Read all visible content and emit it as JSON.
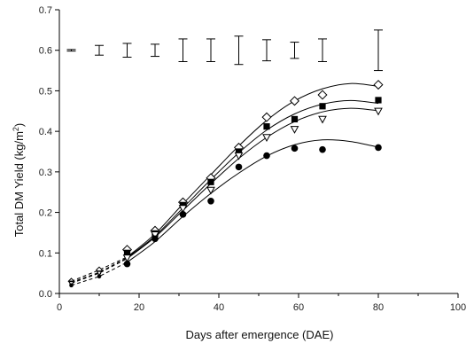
{
  "chart_data": {
    "type": "scatter",
    "title": "",
    "xlabel": "Days after emergence (DAE)",
    "ylabel_main": "Total DM Yield (kg/m",
    "ylabel_sup": "2",
    "ylabel_tail": ")",
    "xlim": [
      0,
      100
    ],
    "ylim": [
      0,
      0.7
    ],
    "xticks": [
      0,
      20,
      40,
      60,
      80,
      100
    ],
    "yticks": [
      0.0,
      0.1,
      0.2,
      0.3,
      0.4,
      0.5,
      0.6,
      0.7
    ],
    "grid": false,
    "legend": "none",
    "series": [
      {
        "marker": "open-diamond",
        "x": [
          3,
          10,
          17,
          24,
          31,
          38,
          45,
          52,
          59,
          66,
          80
        ],
        "y": [
          0.03,
          0.058,
          0.108,
          0.155,
          0.225,
          0.285,
          0.36,
          0.435,
          0.475,
          0.49,
          0.515
        ],
        "fit": {
          "x": [
            17,
            24,
            31,
            38,
            45,
            52,
            59,
            66,
            73,
            80
          ],
          "y": [
            0.09,
            0.147,
            0.221,
            0.293,
            0.364,
            0.427,
            0.475,
            0.505,
            0.518,
            0.511
          ]
        }
      },
      {
        "marker": "filled-square",
        "x": [
          3,
          10,
          17,
          24,
          31,
          38,
          45,
          52,
          59,
          66,
          80
        ],
        "y": [
          0.027,
          0.052,
          0.1,
          0.148,
          0.218,
          0.275,
          0.35,
          0.412,
          0.43,
          0.462,
          0.477
        ],
        "fit": {
          "x": [
            17,
            24,
            31,
            38,
            45,
            52,
            59,
            66,
            73,
            80
          ],
          "y": [
            0.088,
            0.142,
            0.211,
            0.281,
            0.347,
            0.403,
            0.443,
            0.467,
            0.476,
            0.469
          ]
        }
      },
      {
        "marker": "open-triangle-down",
        "x": [
          3,
          10,
          17,
          24,
          31,
          38,
          45,
          52,
          59,
          66,
          80
        ],
        "y": [
          0.025,
          0.05,
          0.088,
          0.145,
          0.21,
          0.255,
          0.34,
          0.385,
          0.405,
          0.43,
          0.45
        ],
        "fit": {
          "x": [
            17,
            24,
            31,
            38,
            45,
            52,
            59,
            66,
            73,
            80
          ],
          "y": [
            0.086,
            0.139,
            0.205,
            0.271,
            0.333,
            0.385,
            0.424,
            0.448,
            0.457,
            0.451
          ]
        }
      },
      {
        "marker": "filled-circle",
        "x": [
          3,
          10,
          17,
          24,
          31,
          38,
          45,
          52,
          59,
          66,
          80
        ],
        "y": [
          0.02,
          0.042,
          0.073,
          0.135,
          0.195,
          0.228,
          0.312,
          0.34,
          0.358,
          0.355,
          0.36
        ],
        "fit": {
          "x": [
            17,
            24,
            31,
            38,
            45,
            52,
            59,
            66,
            73,
            80
          ],
          "y": [
            0.077,
            0.128,
            0.19,
            0.247,
            0.297,
            0.339,
            0.367,
            0.379,
            0.375,
            0.361
          ]
        }
      }
    ],
    "error_bars": {
      "center": 0.6,
      "x": [
        3,
        10,
        17,
        24,
        31,
        38,
        45,
        52,
        59,
        66,
        80
      ],
      "half_width": [
        0.002,
        0.012,
        0.017,
        0.015,
        0.028,
        0.028,
        0.035,
        0.026,
        0.02,
        0.028,
        0.05
      ]
    }
  }
}
